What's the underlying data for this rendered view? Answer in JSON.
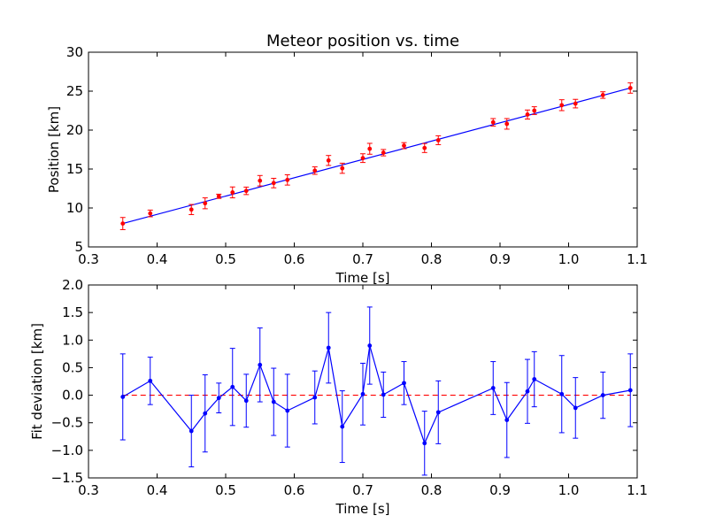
{
  "chart_data": [
    {
      "type": "scatter",
      "title": "Meteor position vs. time",
      "xlabel": "Time [s]",
      "ylabel": "Position [km]",
      "xlim": [
        0.3,
        1.1
      ],
      "ylim": [
        5,
        30
      ],
      "xticks": [
        "0.3",
        "0.4",
        "0.5",
        "0.6",
        "0.7",
        "0.8",
        "0.9",
        "1.0",
        "1.1"
      ],
      "yticks": [
        "5",
        "10",
        "15",
        "20",
        "25",
        "30"
      ],
      "grid": false,
      "colors": {
        "points": "#ff0000",
        "fit": "#0000ff"
      },
      "series": [
        {
          "kind": "points-with-errorbars",
          "x": [
            0.35,
            0.39,
            0.45,
            0.47,
            0.49,
            0.51,
            0.53,
            0.55,
            0.57,
            0.59,
            0.63,
            0.65,
            0.67,
            0.7,
            0.71,
            0.73,
            0.76,
            0.79,
            0.81,
            0.89,
            0.91,
            0.94,
            0.95,
            0.99,
            1.01,
            1.05,
            1.09
          ],
          "y": [
            8.0,
            9.3,
            9.8,
            10.6,
            11.5,
            12.0,
            12.2,
            13.5,
            13.2,
            13.6,
            14.8,
            16.1,
            15.1,
            16.4,
            17.6,
            17.1,
            18.0,
            17.7,
            18.7,
            21.0,
            20.8,
            22.0,
            22.5,
            23.2,
            23.4,
            24.5,
            25.4
          ],
          "err": [
            0.78,
            0.43,
            0.65,
            0.7,
            0.27,
            0.7,
            0.48,
            0.67,
            0.61,
            0.66,
            0.48,
            0.64,
            0.65,
            0.56,
            0.7,
            0.41,
            0.39,
            0.58,
            0.57,
            0.48,
            0.68,
            0.58,
            0.5,
            0.7,
            0.55,
            0.42,
            0.66
          ]
        },
        {
          "kind": "fit-line",
          "x": [
            0.35,
            1.09
          ],
          "y": [
            8.0,
            25.4
          ]
        }
      ]
    },
    {
      "type": "line",
      "title": "",
      "xlabel": "Time [s]",
      "ylabel": "Fit deviation [km]",
      "xlim": [
        0.3,
        1.1
      ],
      "ylim": [
        -1.5,
        2.0
      ],
      "xticks": [
        "0.3",
        "0.4",
        "0.5",
        "0.6",
        "0.7",
        "0.8",
        "0.9",
        "1.0",
        "1.1"
      ],
      "yticks": [
        "−1.5",
        "−1.0",
        "−0.5",
        "0.0",
        "0.5",
        "1.0",
        "1.5",
        "2.0"
      ],
      "grid": false,
      "colors": {
        "line": "#0000ff",
        "reference": "#ff0000"
      },
      "reference_line": 0.0,
      "series": [
        {
          "x": [
            0.35,
            0.39,
            0.45,
            0.47,
            0.49,
            0.51,
            0.53,
            0.55,
            0.57,
            0.59,
            0.63,
            0.65,
            0.67,
            0.7,
            0.71,
            0.73,
            0.76,
            0.79,
            0.81,
            0.89,
            0.91,
            0.94,
            0.95,
            0.99,
            1.01,
            1.05,
            1.09
          ],
          "y": [
            -0.03,
            0.26,
            -0.65,
            -0.33,
            -0.05,
            0.15,
            -0.1,
            0.55,
            -0.12,
            -0.28,
            -0.04,
            0.86,
            -0.57,
            0.02,
            0.9,
            0.01,
            0.22,
            -0.87,
            -0.31,
            0.13,
            -0.45,
            0.07,
            0.29,
            0.02,
            -0.23,
            0.0,
            0.09
          ],
          "err": [
            0.78,
            0.43,
            0.65,
            0.7,
            0.27,
            0.7,
            0.48,
            0.67,
            0.61,
            0.66,
            0.48,
            0.64,
            0.65,
            0.56,
            0.7,
            0.41,
            0.39,
            0.58,
            0.57,
            0.48,
            0.68,
            0.58,
            0.5,
            0.7,
            0.55,
            0.42,
            0.66
          ]
        }
      ]
    }
  ]
}
